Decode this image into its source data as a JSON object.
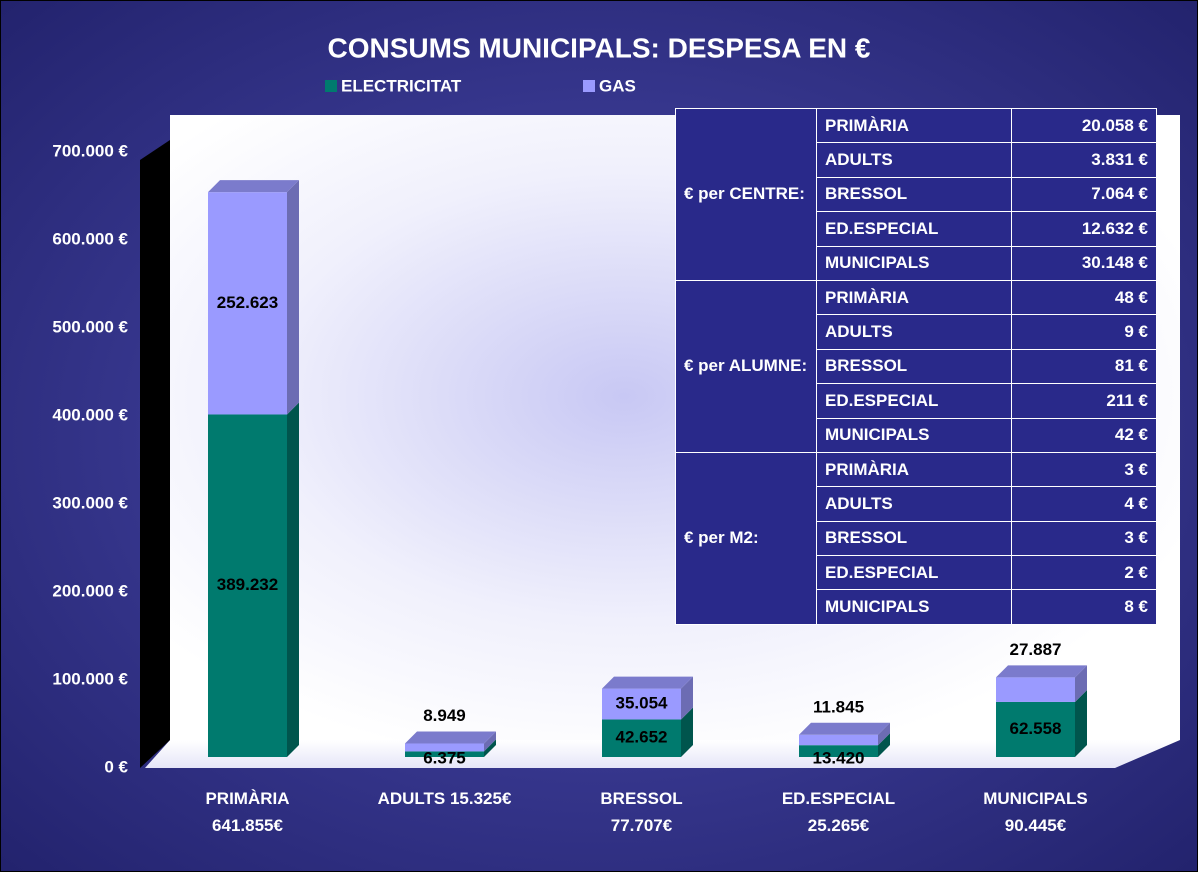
{
  "chart_data": {
    "type": "bar3d_stacked",
    "title": "CONSUMS MUNICIPALS: DESPESA EN €",
    "categories": [
      "PRIMÀRIA\n641.855€",
      "ADULTS 15.325€",
      "BRESSOL\n77.707€",
      "ED.ESPECIAL\n25.265€",
      "MUNICIPALS\n90.445€"
    ],
    "series": [
      {
        "name": "ELECTRICITAT",
        "color": "#007a6e",
        "values": [
          389232,
          6375,
          42652,
          13420,
          62558
        ],
        "value_labels": [
          "389.232",
          "6.375",
          "42.652",
          "13.420",
          "62.558"
        ]
      },
      {
        "name": "GAS",
        "color": "#9a9aff",
        "values": [
          252623,
          8949,
          35054,
          11845,
          27887
        ],
        "value_labels": [
          "252.623",
          "8.949",
          "35.054",
          "11.845",
          "27.887"
        ]
      }
    ],
    "ylim": [
      0,
      700000
    ],
    "yticks": [
      {
        "value": 0,
        "label": "0 €"
      },
      {
        "value": 100000,
        "label": "100.000 €"
      },
      {
        "value": 200000,
        "label": "200.000 €"
      },
      {
        "value": 300000,
        "label": "300.000 €"
      },
      {
        "value": 400000,
        "label": "400.000 €"
      },
      {
        "value": 500000,
        "label": "500.000 €"
      },
      {
        "value": 600000,
        "label": "600.000 €"
      },
      {
        "value": 700000,
        "label": "700.000 €"
      }
    ],
    "legend": "top",
    "table": {
      "groups": [
        {
          "label": "€ per CENTRE:",
          "rows": [
            [
              "PRIMÀRIA",
              "20.058 €"
            ],
            [
              "ADULTS",
              "3.831 €"
            ],
            [
              "BRESSOL",
              "7.064 €"
            ],
            [
              "ED.ESPECIAL",
              "12.632 €"
            ],
            [
              "MUNICIPALS",
              "30.148 €"
            ]
          ]
        },
        {
          "label": "€ per ALUMNE:",
          "rows": [
            [
              "PRIMÀRIA",
              "48 €"
            ],
            [
              "ADULTS",
              "9 €"
            ],
            [
              "BRESSOL",
              "81 €"
            ],
            [
              "ED.ESPECIAL",
              "211 €"
            ],
            [
              "MUNICIPALS",
              "42 €"
            ]
          ]
        },
        {
          "label": "€ per M2:",
          "rows": [
            [
              "PRIMÀRIA",
              "3 €"
            ],
            [
              "ADULTS",
              "4 €"
            ],
            [
              "BRESSOL",
              "3 €"
            ],
            [
              "ED.ESPECIAL",
              "2 €"
            ],
            [
              "MUNICIPALS",
              "8 €"
            ]
          ]
        }
      ]
    }
  }
}
